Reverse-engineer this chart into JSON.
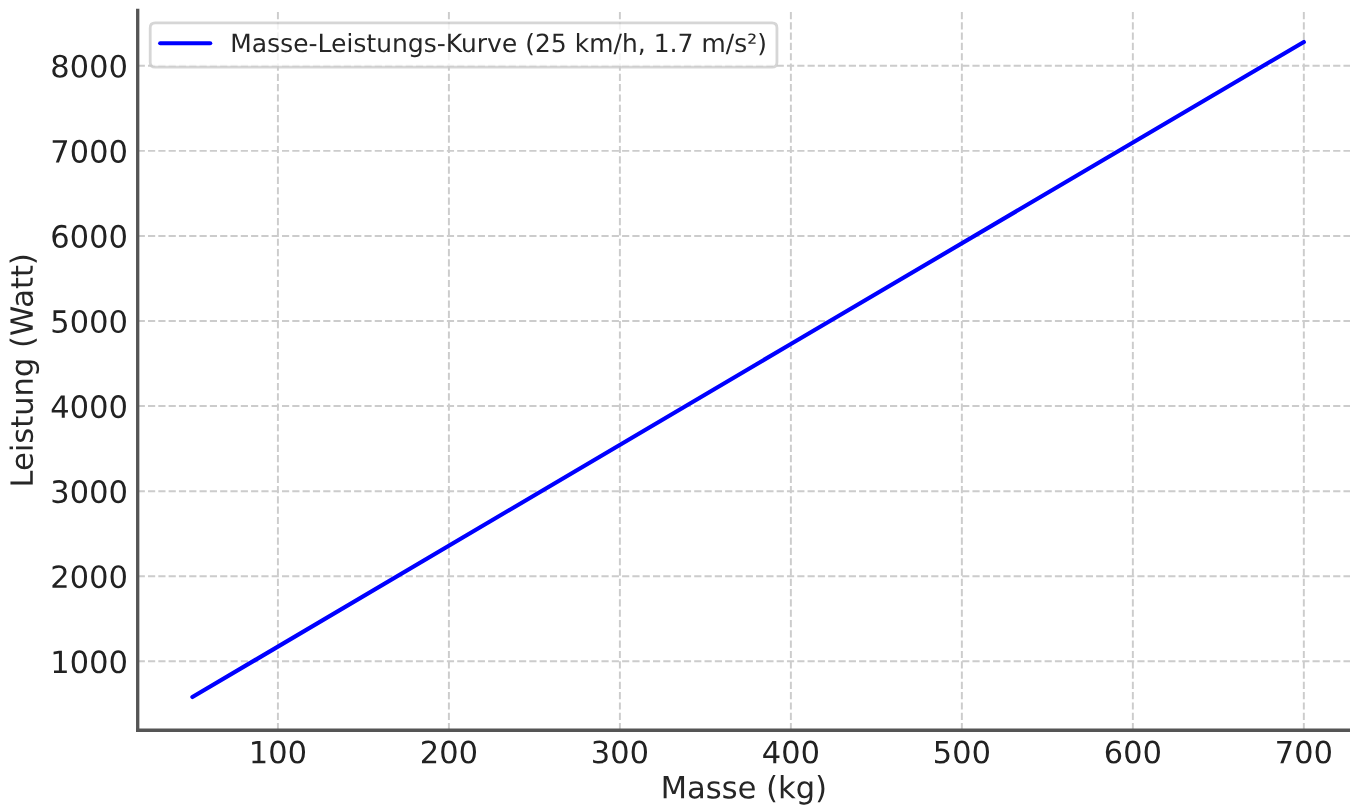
{
  "chart_data": {
    "type": "line",
    "xlabel": "Masse (kg)",
    "ylabel": "Leistung (Watt)",
    "x": [
      50,
      400,
      700
    ],
    "series": [
      {
        "name": "Masse-Leistungs-Kurve (25 km/h, 1.7 m/s²)",
        "color": "#0000ff",
        "values": [
          580,
          4730,
          8280
        ]
      }
    ],
    "xlim": [
      18,
      727
    ],
    "ylim": [
      190,
      8650
    ],
    "xticks": [
      100,
      200,
      300,
      400,
      500,
      600,
      700
    ],
    "yticks": [
      1000,
      2000,
      3000,
      4000,
      5000,
      6000,
      7000,
      8000
    ],
    "grid": true,
    "legend": "top left",
    "line_style": "solid",
    "marker": "none"
  }
}
